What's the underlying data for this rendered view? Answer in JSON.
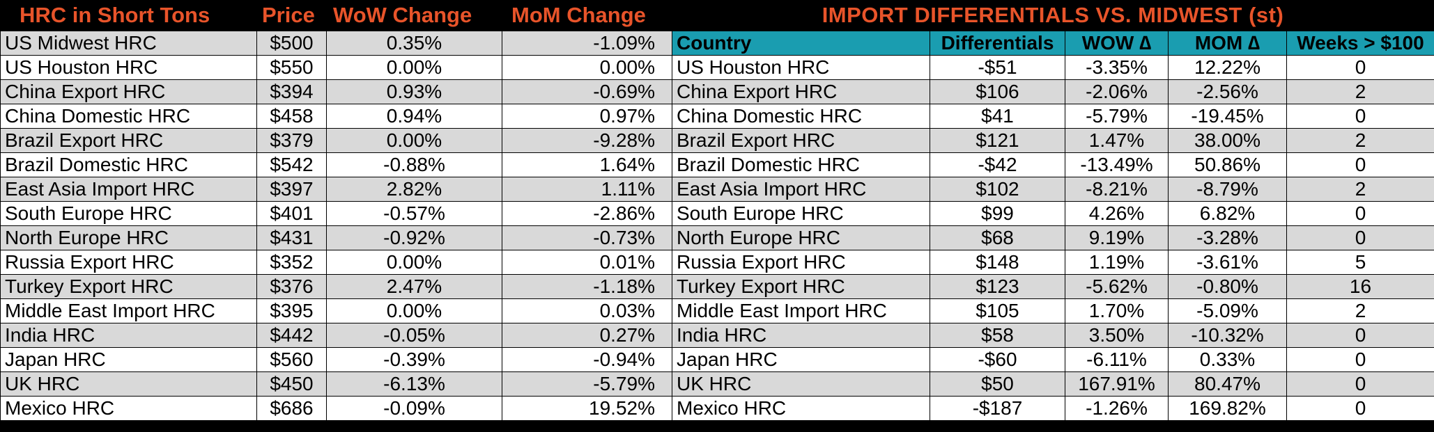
{
  "left": {
    "headers": [
      "HRC in Short Tons",
      "Price",
      "WoW Change",
      "MoM Change"
    ],
    "rows": [
      [
        "US Midwest HRC",
        "$500",
        "0.35%",
        "-1.09%"
      ],
      [
        "US Houston HRC",
        "$550",
        "0.00%",
        "0.00%"
      ],
      [
        "China Export HRC",
        "$394",
        "0.93%",
        "-0.69%"
      ],
      [
        "China Domestic HRC",
        "$458",
        "0.94%",
        "0.97%"
      ],
      [
        "Brazil Export HRC",
        "$379",
        "0.00%",
        "-9.28%"
      ],
      [
        "Brazil Domestic HRC",
        "$542",
        "-0.88%",
        "1.64%"
      ],
      [
        "East Asia Import HRC",
        "$397",
        "2.82%",
        "1.11%"
      ],
      [
        "South Europe HRC",
        "$401",
        "-0.57%",
        "-2.86%"
      ],
      [
        "North Europe HRC",
        "$431",
        "-0.92%",
        "-0.73%"
      ],
      [
        "Russia Export HRC",
        "$352",
        "0.00%",
        "0.01%"
      ],
      [
        "Turkey Export HRC",
        "$376",
        "2.47%",
        "-1.18%"
      ],
      [
        "Middle East Import HRC",
        "$395",
        "0.00%",
        "0.03%"
      ],
      [
        "India HRC",
        "$442",
        "-0.05%",
        "0.27%"
      ],
      [
        "Japan HRC",
        "$560",
        "-0.39%",
        "-0.94%"
      ],
      [
        "UK HRC",
        "$450",
        "-6.13%",
        "-5.79%"
      ],
      [
        "Mexico HRC",
        "$686",
        "-0.09%",
        "19.52%"
      ]
    ]
  },
  "right": {
    "title": "IMPORT DIFFERENTIALS VS. MIDWEST (st)",
    "headers": [
      "Country",
      "Differentials",
      "WOW ∆",
      "MOM ∆",
      "Weeks > $100"
    ],
    "rows": [
      [
        "US Houston HRC",
        "-$51",
        "-3.35%",
        "12.22%",
        "0"
      ],
      [
        "China Export HRC",
        "$106",
        "-2.06%",
        "-2.56%",
        "2"
      ],
      [
        "China Domestic HRC",
        "$41",
        "-5.79%",
        "-19.45%",
        "0"
      ],
      [
        "Brazil Export HRC",
        "$121",
        "1.47%",
        "38.00%",
        "2"
      ],
      [
        "Brazil Domestic HRC",
        "-$42",
        "-13.49%",
        "50.86%",
        "0"
      ],
      [
        "East Asia Import HRC",
        "$102",
        "-8.21%",
        "-8.79%",
        "2"
      ],
      [
        "South Europe HRC",
        "$99",
        "4.26%",
        "6.82%",
        "0"
      ],
      [
        "North Europe HRC",
        "$68",
        "9.19%",
        "-3.28%",
        "0"
      ],
      [
        "Russia Export HRC",
        "$148",
        "1.19%",
        "-3.61%",
        "5"
      ],
      [
        "Turkey Export HRC",
        "$123",
        "-5.62%",
        "-0.80%",
        "16"
      ],
      [
        "Middle East Import HRC",
        "$105",
        "1.70%",
        "-5.09%",
        "2"
      ],
      [
        "India HRC",
        "$58",
        "3.50%",
        "-10.32%",
        "0"
      ],
      [
        "Japan HRC",
        "-$60",
        "-6.11%",
        "0.33%",
        "0"
      ],
      [
        "UK HRC",
        "$50",
        "167.91%",
        "80.47%",
        "0"
      ],
      [
        "Mexico HRC",
        "-$187",
        "-1.26%",
        "169.82%",
        "0"
      ]
    ]
  },
  "colors": {
    "title_orange": "#e8542a",
    "header_teal": "#1a9db0",
    "row_gray": "#d9d9d9",
    "row_white": "#ffffff",
    "background": "#000000"
  }
}
